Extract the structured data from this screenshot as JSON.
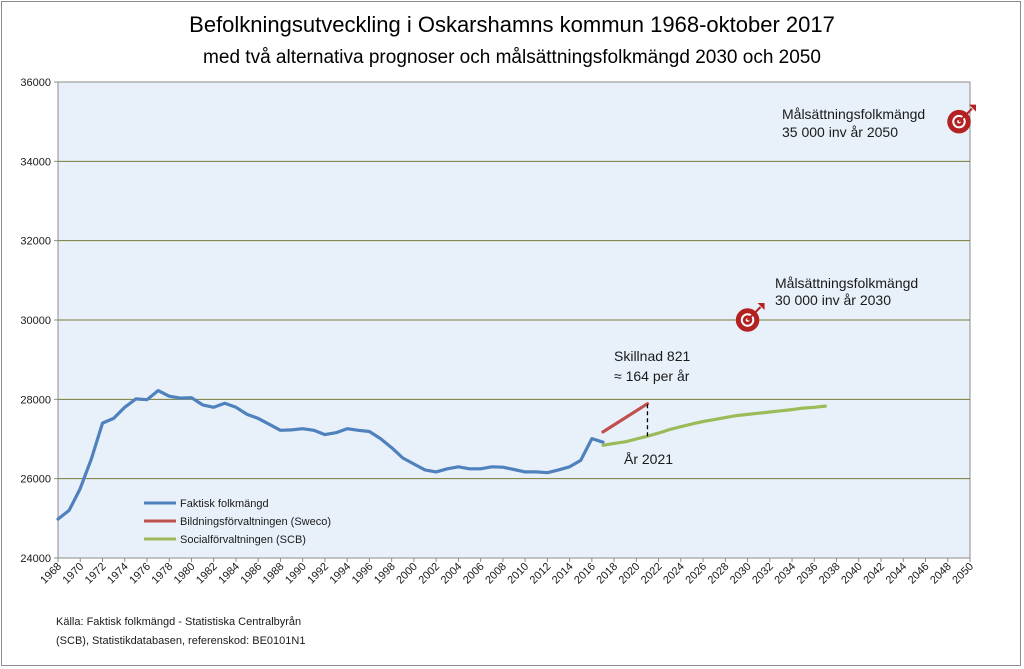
{
  "chart_data": {
    "type": "line",
    "title": "Befolkningsutveckling i Oskarshamns kommun 1968-oktober 2017",
    "subtitle": "med två alternativa prognoser och målsättningsfolkmängd 2030 och 2050",
    "xlabel": "",
    "ylabel": "",
    "xlim": [
      1968,
      2050
    ],
    "ylim": [
      24000,
      36000
    ],
    "x_ticks": [
      1968,
      1970,
      1972,
      1974,
      1976,
      1978,
      1980,
      1982,
      1984,
      1986,
      1988,
      1990,
      1992,
      1994,
      1996,
      1998,
      2000,
      2002,
      2004,
      2006,
      2008,
      2010,
      2012,
      2014,
      2016,
      2018,
      2020,
      2022,
      2024,
      2026,
      2028,
      2030,
      2032,
      2034,
      2036,
      2038,
      2040,
      2042,
      2044,
      2046,
      2048,
      2050
    ],
    "y_ticks": [
      24000,
      26000,
      28000,
      30000,
      32000,
      34000,
      36000
    ],
    "grid": "horizontal",
    "legend_position": "bottom-left",
    "plot_background": "#e8f1fa",
    "grid_color": "#7a7a3a",
    "series": [
      {
        "name": "Faktisk folkmängd",
        "color": "#4f81bd",
        "x": [
          1968,
          1969,
          1970,
          1971,
          1972,
          1973,
          1974,
          1975,
          1976,
          1977,
          1978,
          1979,
          1980,
          1981,
          1982,
          1983,
          1984,
          1985,
          1986,
          1987,
          1988,
          1989,
          1990,
          1991,
          1992,
          1993,
          1994,
          1995,
          1996,
          1997,
          1998,
          1999,
          2000,
          2001,
          2002,
          2003,
          2004,
          2005,
          2006,
          2007,
          2008,
          2009,
          2010,
          2011,
          2012,
          2013,
          2014,
          2015,
          2016,
          2017
        ],
        "y": [
          24980,
          25200,
          25750,
          26500,
          27400,
          27520,
          27800,
          28010,
          27990,
          28220,
          28080,
          28030,
          28040,
          27860,
          27800,
          27900,
          27800,
          27620,
          27520,
          27370,
          27220,
          27230,
          27260,
          27220,
          27110,
          27160,
          27260,
          27220,
          27190,
          27010,
          26780,
          26520,
          26370,
          26220,
          26170,
          26250,
          26300,
          26250,
          26250,
          26300,
          26290,
          26230,
          26170,
          26170,
          26150,
          26220,
          26300,
          26460,
          27010,
          26920
        ]
      },
      {
        "name": "Bildningsförvaltningen (Sweco)",
        "color": "#c0504d",
        "x": [
          2017,
          2021
        ],
        "y": [
          27180,
          27890
        ]
      },
      {
        "name": "Socialförvaltningen (SCB)",
        "color": "#9bbb59",
        "x": [
          2017,
          2018,
          2019,
          2020,
          2021,
          2022,
          2023,
          2024,
          2025,
          2026,
          2027,
          2028,
          2029,
          2030,
          2031,
          2032,
          2033,
          2034,
          2035,
          2036,
          2037
        ],
        "y": [
          26840,
          26890,
          26930,
          27000,
          27070,
          27150,
          27240,
          27310,
          27380,
          27440,
          27490,
          27540,
          27590,
          27620,
          27650,
          27680,
          27710,
          27740,
          27780,
          27800,
          27830
        ]
      }
    ],
    "annotations": {
      "diff_line": "Skillnad  821",
      "diff_per_year": "≈ 164 per år",
      "diff_year_label": "År 2021",
      "diff_year": 2021,
      "diff_from": 27070,
      "diff_to": 27890,
      "target_2030_line1": "Målsättningsfolkmängd",
      "target_2030_line2": "30 000 inv år 2030",
      "target_2030": {
        "x": 2030,
        "y": 30000
      },
      "target_2050_line1": "Målsättningsfolkmängd",
      "target_2050_line2": "35 000 inv år 2050",
      "target_2050": {
        "x": 2050,
        "y": 35000
      },
      "target_icon": "target-dart-icon",
      "target_color": "#b22222"
    },
    "source_line1": "Källa: Faktisk folkmängd - Statistiska Centralbyrån",
    "source_line2": "(SCB), Statistikdatabasen, referenskod: BE0101N1"
  }
}
